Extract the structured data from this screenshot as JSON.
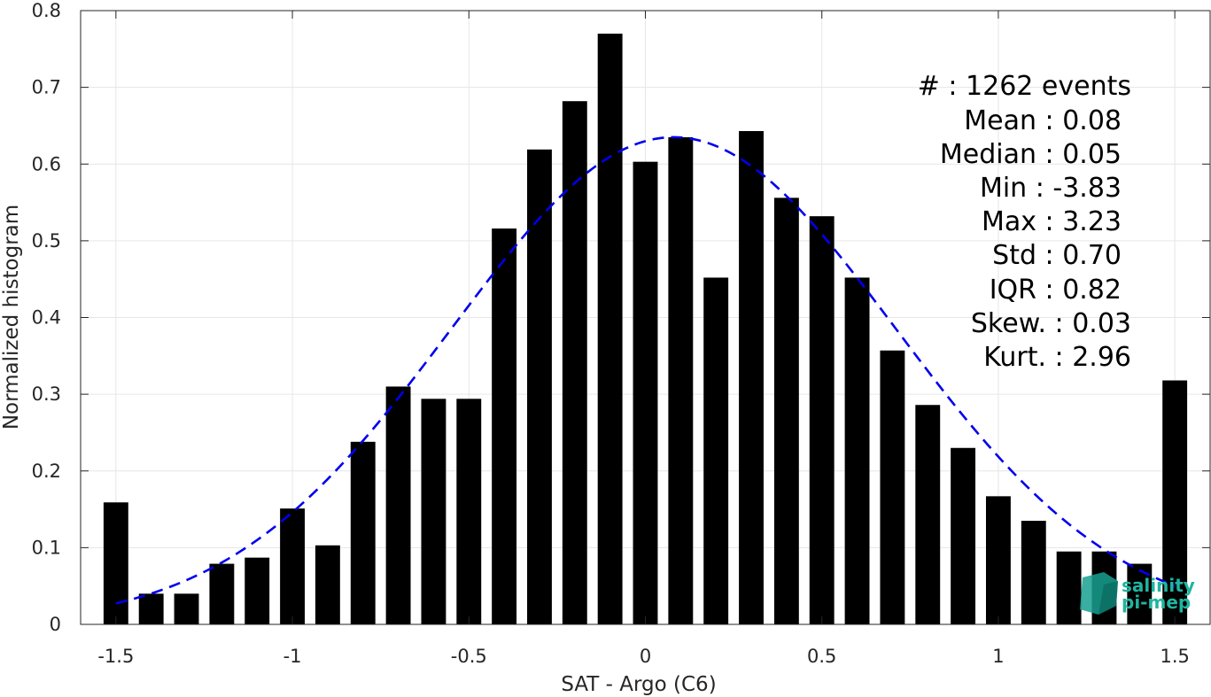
{
  "chart_data": {
    "type": "bar",
    "xlabel": "SAT - Argo (C6)",
    "ylabel": "Normalized histogram",
    "xlim": [
      -1.6,
      1.6
    ],
    "ylim": [
      0,
      0.8
    ],
    "xticks": [
      -1.5,
      -1,
      -0.5,
      0,
      0.5,
      1,
      1.5
    ],
    "xtick_labels": [
      "-1.5",
      "-1",
      "-0.5",
      "0",
      "0.5",
      "1",
      "1.5"
    ],
    "yticks": [
      0,
      0.1,
      0.2,
      0.3,
      0.4,
      0.5,
      0.6,
      0.7,
      0.8
    ],
    "ytick_labels": [
      "0",
      "0.1",
      "0.2",
      "0.3",
      "0.4",
      "0.5",
      "0.6",
      "0.7",
      "0.8"
    ],
    "grid": true,
    "bar_width": 0.07,
    "bar_color": "#000000",
    "bars": {
      "x": [
        -1.5,
        -1.4,
        -1.3,
        -1.2,
        -1.1,
        -1.0,
        -0.9,
        -0.8,
        -0.7,
        -0.6,
        -0.5,
        -0.4,
        -0.3,
        -0.2,
        -0.1,
        0.0,
        0.1,
        0.2,
        0.3,
        0.4,
        0.5,
        0.6,
        0.7,
        0.8,
        0.9,
        1.0,
        1.1,
        1.2,
        1.3,
        1.4,
        1.5
      ],
      "values": [
        0.159,
        0.04,
        0.04,
        0.079,
        0.087,
        0.151,
        0.103,
        0.238,
        0.31,
        0.294,
        0.294,
        0.516,
        0.619,
        0.682,
        0.77,
        0.603,
        0.635,
        0.452,
        0.643,
        0.556,
        0.532,
        0.452,
        0.357,
        0.286,
        0.23,
        0.167,
        0.135,
        0.095,
        0.095,
        0.079,
        0.318
      ]
    },
    "fit_curve": {
      "style": "dashed",
      "color": "#0000ee",
      "mean": 0.08,
      "std": 0.63,
      "peak": 0.635,
      "x_range": [
        -1.5,
        1.5
      ]
    },
    "annotations": [
      "#  : 1262 events",
      "Mean : 0.08",
      "Median : 0.05",
      "Min : -3.83",
      "Max : 3.23",
      "Std : 0.70",
      "IQR : 0.82",
      "Skew. : 0.03",
      "Kurt. : 2.96"
    ]
  },
  "logo": {
    "line1": "salinity",
    "line2": "pi-mep",
    "color": "#1fb5a0"
  }
}
